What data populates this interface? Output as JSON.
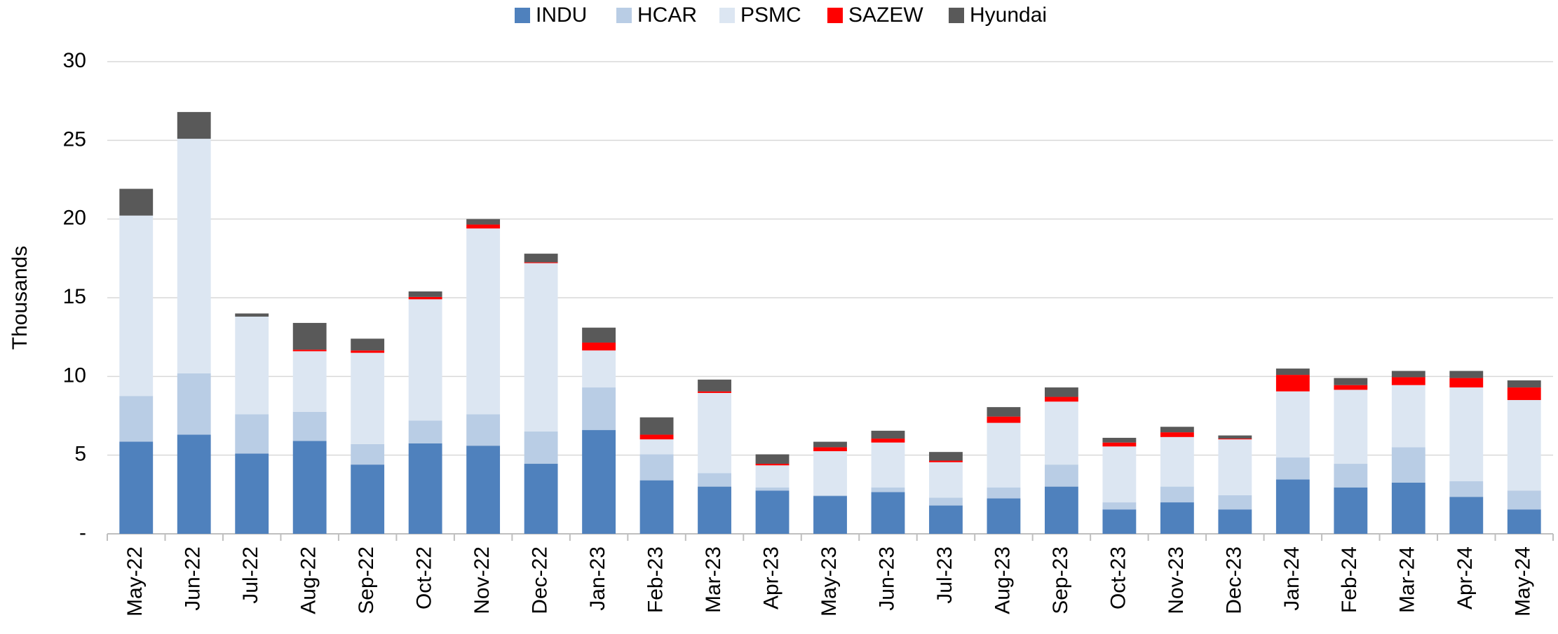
{
  "chart_data": {
    "type": "bar",
    "stacked": true,
    "y_label": "Thousands",
    "categories": [
      "May-22",
      "Jun-22",
      "Jul-22",
      "Aug-22",
      "Sep-22",
      "Oct-22",
      "Nov-22",
      "Dec-22",
      "Jan-23",
      "Feb-23",
      "Mar-23",
      "Apr-23",
      "May-23",
      "Jun-23",
      "Jul-23",
      "Aug-23",
      "Sep-23",
      "Oct-23",
      "Nov-23",
      "Dec-23",
      "Jan-24",
      "Feb-24",
      "Mar-24",
      "Apr-24",
      "May-24"
    ],
    "series": [
      {
        "name": "INDU",
        "color": "#4f81bd",
        "values": [
          5.86,
          6.3,
          5.1,
          5.9,
          4.4,
          5.75,
          5.6,
          4.45,
          6.6,
          3.4,
          3.0,
          2.75,
          2.4,
          2.65,
          1.8,
          2.25,
          3.0,
          1.55,
          2.0,
          1.55,
          3.45,
          2.95,
          3.25,
          2.35,
          1.55
        ]
      },
      {
        "name": "HCAR",
        "color": "#b9cde5",
        "values": [
          2.9,
          3.9,
          2.5,
          1.85,
          1.3,
          1.45,
          2.0,
          2.05,
          2.7,
          1.65,
          0.85,
          0.2,
          0.05,
          0.3,
          0.5,
          0.7,
          1.4,
          0.45,
          1.0,
          0.9,
          1.4,
          1.5,
          2.25,
          1.0,
          1.2
        ]
      },
      {
        "name": "PSMC",
        "color": "#dce6f2",
        "values": [
          11.46,
          14.9,
          6.2,
          3.85,
          5.8,
          7.7,
          11.8,
          10.7,
          2.35,
          0.95,
          5.1,
          1.4,
          2.8,
          2.85,
          2.25,
          4.1,
          4.0,
          3.55,
          3.15,
          3.55,
          4.2,
          4.7,
          3.95,
          5.95,
          5.75
        ]
      },
      {
        "name": "SAZEW",
        "color": "#ff0000",
        "values": [
          0,
          0,
          0,
          0.1,
          0.15,
          0.15,
          0.25,
          0.05,
          0.5,
          0.3,
          0.1,
          0.1,
          0.25,
          0.25,
          0.1,
          0.4,
          0.3,
          0.25,
          0.3,
          0.05,
          1.05,
          0.3,
          0.5,
          0.6,
          0.8
        ]
      },
      {
        "name": "Hyundai",
        "color": "#595959",
        "values": [
          1.7,
          1.7,
          0.2,
          1.7,
          0.75,
          0.35,
          0.35,
          0.55,
          0.95,
          1.1,
          0.75,
          0.6,
          0.35,
          0.5,
          0.55,
          0.6,
          0.6,
          0.3,
          0.35,
          0.2,
          0.4,
          0.45,
          0.4,
          0.45,
          0.45
        ]
      }
    ],
    "ylim": [
      0,
      30
    ],
    "yticks": [
      {
        "value": 0,
        "label": "-"
      },
      5,
      10,
      15,
      20,
      25,
      30
    ],
    "grid": true,
    "legend": "top"
  }
}
